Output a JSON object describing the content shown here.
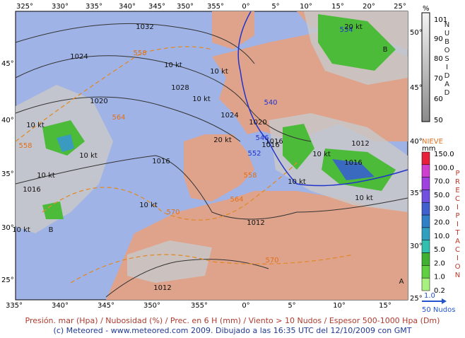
{
  "axes": {
    "top": [
      "325°",
      "330°",
      "335°",
      "340°",
      "345°",
      "350°",
      "355°",
      "0°",
      "5°",
      "10°",
      "15°",
      "20°",
      "25°"
    ],
    "bottom": [
      "335°",
      "340°",
      "345°",
      "350°",
      "355°",
      "0°",
      "5°",
      "10°",
      "15°"
    ],
    "left": [
      "45°",
      "40°",
      "35°",
      "30°",
      "25°"
    ],
    "right": [
      "50°",
      "45°",
      "40°",
      "35°",
      "30°",
      "25°"
    ]
  },
  "legend_cloud": {
    "unit": "%",
    "ticks": [
      "101",
      "90",
      "80",
      "70",
      "60",
      "50"
    ],
    "title": "NUBOSIDAD"
  },
  "legend_precip": {
    "snow": "NIEVE",
    "unit": "mm",
    "ticks": [
      "150.0",
      "100.0",
      "70.0",
      "50.0",
      "30.0",
      "20.0",
      "10.0",
      "5.0",
      "2.0",
      "1.0",
      "0.2"
    ],
    "title": "PRECIPITACION"
  },
  "wind_scale": {
    "value": "1.0",
    "label": "50 Nudos"
  },
  "map_labels": [
    "1032",
    "1024",
    "1028",
    "1020",
    "1024",
    "1020",
    "1016",
    "1016",
    "1012",
    "1016",
    "1012",
    "1012",
    "1016",
    "1016",
    "558",
    "564",
    "558",
    "570",
    "570",
    "564",
    "534",
    "540",
    "546",
    "552",
    "558",
    "10 kt",
    "10 kt",
    "10 kt",
    "20 kt",
    "10 kt",
    "10 kt",
    "10 kt",
    "10 kt",
    "10 kt",
    "10 kt",
    "20 kt",
    "10 kt",
    "10 kt",
    "B",
    "B",
    "A"
  ],
  "caption": [
    "Presión. mar (Hpa) / Nubosidad (%) / Prec. en 6 H (mm) / Viento > 10 Nudos / Espesor 500-1000 Hpa (Dm)",
    "(c) Meteored - www.meteored.com 2009. Dibujado a las 16:35 UTC del 12/10/2009  con GMT"
  ]
}
